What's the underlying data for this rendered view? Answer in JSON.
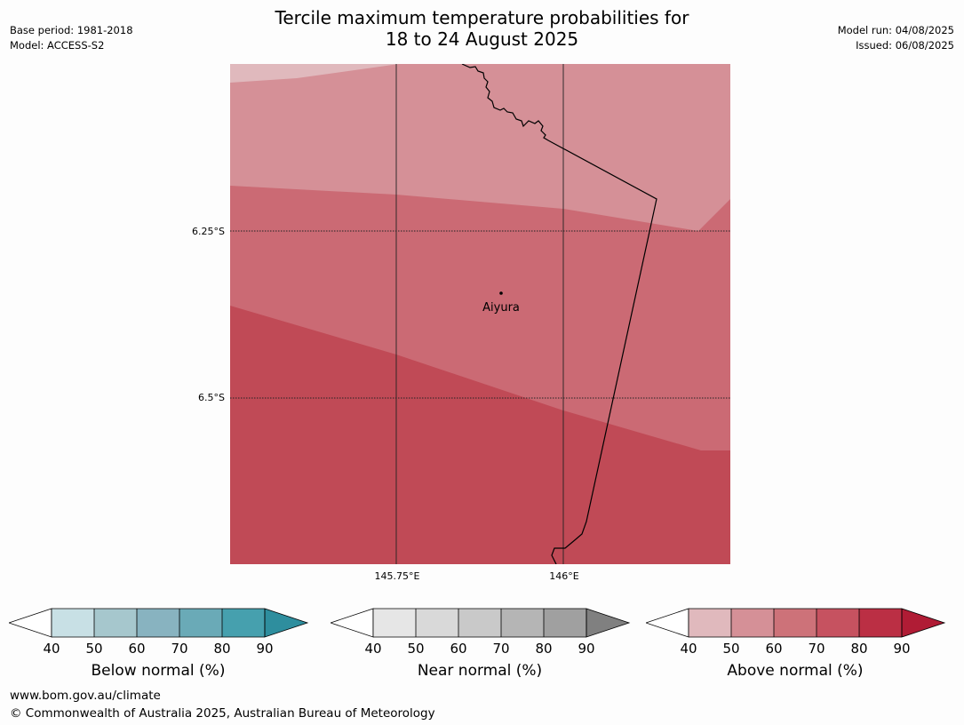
{
  "title": {
    "line1": "Tercile maximum temperature probabilities for",
    "line2": "18 to 24 August 2025"
  },
  "meta_left": {
    "base_period": "Base period: 1981-2018",
    "model": "Model: ACCESS-S2"
  },
  "meta_right": {
    "model_run": "Model run: 04/08/2025",
    "issued": "Issued: 06/08/2025"
  },
  "map": {
    "lat_labels": [
      "6.25°S",
      "6.5°S"
    ],
    "lon_labels": [
      "145.75°E",
      "146°E"
    ],
    "place": {
      "name": "Aiyura"
    },
    "region_colors": {
      "band_50_60": "#d59097",
      "band_60_70": "#cb6a74",
      "band_70_80": "#c04a56",
      "band_40_50": "#e0b9bd"
    }
  },
  "colorbars": [
    {
      "title": "Below normal (%)",
      "ticks": [
        "40",
        "50",
        "60",
        "70",
        "80",
        "90"
      ],
      "colors": [
        "#c8e0e5",
        "#a6c7cd",
        "#88b3c0",
        "#6aaab7",
        "#46a0ae"
      ],
      "arrow_color": "#2e8e9e"
    },
    {
      "title": "Near normal (%)",
      "ticks": [
        "40",
        "50",
        "60",
        "70",
        "80",
        "90"
      ],
      "colors": [
        "#e6e6e6",
        "#d9d9d9",
        "#c9c9c9",
        "#b5b5b5",
        "#a0a0a0"
      ],
      "arrow_color": "#808080"
    },
    {
      "title": "Above normal (%)",
      "ticks": [
        "40",
        "50",
        "60",
        "70",
        "80",
        "90"
      ],
      "colors": [
        "#e0b9bd",
        "#d59097",
        "#cd7279",
        "#c65260",
        "#bb2f44"
      ],
      "arrow_color": "#b01c35"
    }
  ],
  "footer": {
    "url": "www.bom.gov.au/climate",
    "copyright": "© Commonwealth of Australia 2025, Australian Bureau of Meteorology"
  }
}
